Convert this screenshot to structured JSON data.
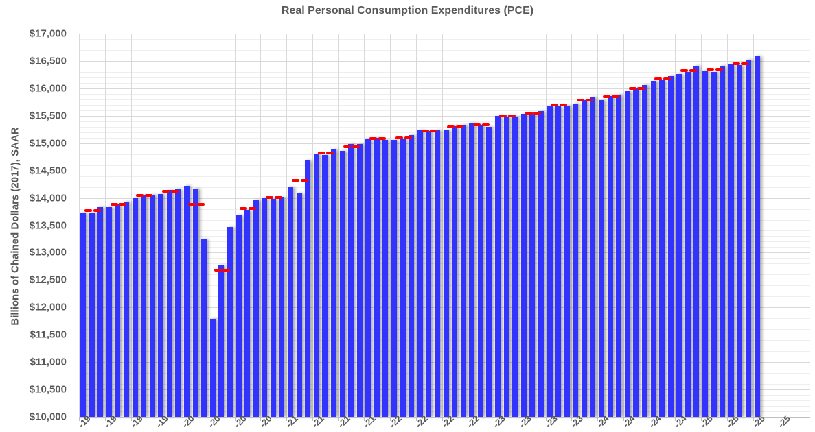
{
  "chart_data": {
    "type": "bar",
    "title": "Real Personal Consumption Expenditures (PCE)",
    "xlabel": "",
    "ylabel": "Billions of Chained Dollars (2017), SAAR",
    "ylim": [
      10000,
      17000
    ],
    "yticks": [
      10000,
      10500,
      11000,
      11500,
      12000,
      12500,
      13000,
      13500,
      14000,
      14500,
      15000,
      15500,
      16000,
      16500,
      17000
    ],
    "ytick_labels": [
      "$10,000",
      "$10,500",
      "$11,000",
      "$11,500",
      "$12,000",
      "$12,500",
      "$13,000",
      "$13,500",
      "$14,000",
      "$14,500",
      "$15,000",
      "$15,500",
      "$16,000",
      "$16,500",
      "$17,000"
    ],
    "grid": true,
    "legend": null,
    "x_tick_note": "x-axis date labels (quarterly, ending in -19 … -25) are clipped at the bottom edge",
    "xtick_labels": [
      "-19",
      "-19",
      "-19",
      "-19",
      "-20",
      "-20",
      "-20",
      "-20",
      "-21",
      "-21",
      "-21",
      "-21",
      "-22",
      "-22",
      "-22",
      "-22",
      "-23",
      "-23",
      "-23",
      "-23",
      "-24",
      "-24",
      "-24",
      "-24",
      "-25",
      "-25",
      "-25",
      "-25"
    ],
    "series": [
      {
        "name": "Monthly Real PCE",
        "style": "bar",
        "color": "#3333ff",
        "values": [
          13730,
          13730,
          13830,
          13830,
          13880,
          13930,
          13990,
          14050,
          14060,
          14070,
          14140,
          14160,
          14220,
          14170,
          13245,
          11790,
          12770,
          13470,
          13680,
          13780,
          13960,
          14000,
          13980,
          14010,
          14200,
          14080,
          14680,
          14800,
          14780,
          14880,
          14860,
          14980,
          14980,
          15090,
          15100,
          15060,
          15060,
          15080,
          15150,
          15230,
          15220,
          15230,
          15240,
          15310,
          15330,
          15360,
          15340,
          15300,
          15500,
          15490,
          15490,
          15540,
          15540,
          15580,
          15670,
          15670,
          15690,
          15720,
          15790,
          15840,
          15790,
          15860,
          15890,
          15950,
          16000,
          16060,
          16140,
          16150,
          16220,
          16260,
          16300,
          16410,
          16320,
          16300,
          16410,
          16440,
          16420,
          16530,
          16590
        ]
      },
      {
        "name": "Quarterly Average",
        "style": "dash",
        "color": "#ff0000",
        "values": [
          13763,
          13883,
          14040,
          14123,
          13880,
          12680,
          13807,
          14003,
          14320,
          14820,
          14940,
          15083,
          15097,
          15227,
          15293,
          15333,
          15497,
          15553,
          15693,
          15783,
          15847,
          16003,
          16170,
          16323,
          16343,
          16450
        ]
      }
    ]
  }
}
